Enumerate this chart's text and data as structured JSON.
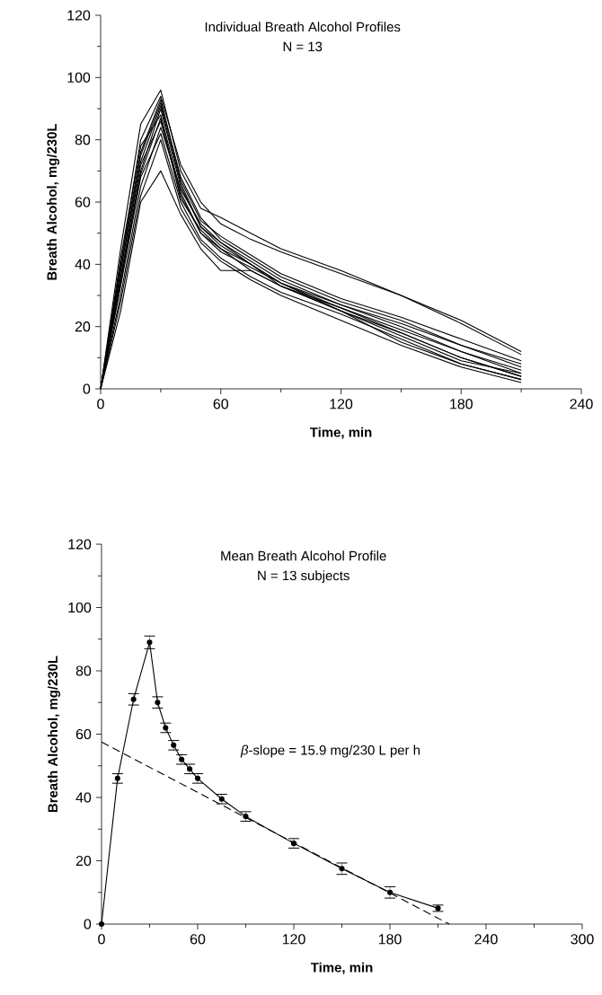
{
  "chart_data": [
    {
      "type": "line",
      "title": "Individual Breath Alcohol Profiles",
      "subtitle": "N = 13",
      "xlabel": "Time, min",
      "ylabel": "Breath Alcohol, mg/230L",
      "x": [
        0,
        10,
        20,
        30,
        40,
        50,
        60,
        75,
        90,
        120,
        150,
        180,
        210
      ],
      "series": [
        {
          "color": "#000000",
          "values": [
            0,
            45,
            85,
            96,
            70,
            58,
            55,
            50,
            45,
            38,
            30,
            22,
            12
          ]
        },
        {
          "color": "#000000",
          "values": [
            0,
            40,
            80,
            94,
            72,
            60,
            53,
            48,
            44,
            37,
            30,
            21,
            11
          ]
        },
        {
          "color": "#000000",
          "values": [
            0,
            38,
            75,
            92,
            68,
            55,
            48,
            42,
            36,
            28,
            22,
            14,
            7
          ]
        },
        {
          "color": "#000000",
          "values": [
            0,
            35,
            70,
            90,
            65,
            52,
            46,
            40,
            34,
            27,
            20,
            12,
            5
          ]
        },
        {
          "color": "#000000",
          "values": [
            0,
            42,
            78,
            88,
            63,
            50,
            45,
            38,
            33,
            25,
            18,
            10,
            4
          ]
        },
        {
          "color": "#000000",
          "values": [
            0,
            36,
            72,
            86,
            62,
            50,
            44,
            39,
            34,
            26,
            19,
            12,
            6
          ]
        },
        {
          "color": "#000000",
          "values": [
            0,
            30,
            65,
            84,
            64,
            53,
            47,
            41,
            35,
            27,
            21,
            14,
            8
          ]
        },
        {
          "color": "#000000",
          "values": [
            0,
            33,
            68,
            82,
            60,
            48,
            42,
            36,
            31,
            24,
            16,
            8,
            3
          ]
        },
        {
          "color": "#000000",
          "values": [
            0,
            28,
            62,
            80,
            58,
            47,
            41,
            35,
            30,
            22,
            14,
            7,
            2
          ]
        },
        {
          "color": "#000000",
          "values": [
            0,
            25,
            60,
            70,
            56,
            45,
            38,
            38,
            33,
            26,
            18,
            10,
            4
          ]
        },
        {
          "color": "#000000",
          "values": [
            0,
            38,
            73,
            91,
            66,
            52,
            47,
            40,
            34,
            25,
            15,
            8,
            3
          ]
        },
        {
          "color": "#000000",
          "values": [
            0,
            40,
            76,
            93,
            67,
            54,
            49,
            43,
            37,
            29,
            23,
            16,
            9
          ]
        },
        {
          "color": "#000000",
          "values": [
            0,
            34,
            69,
            87,
            61,
            51,
            45,
            40,
            33,
            25,
            17,
            9,
            5
          ]
        }
      ],
      "xlim": [
        0,
        240
      ],
      "xticks": [
        0,
        60,
        120,
        180,
        240
      ],
      "ylim": [
        0,
        120
      ],
      "yticks": [
        0,
        20,
        40,
        60,
        80,
        100,
        120
      ],
      "grid": false,
      "marker": "none",
      "line_style": "solid"
    },
    {
      "type": "line",
      "title": "Mean Breath Alcohol Profile",
      "subtitle": "N = 13 subjects",
      "xlabel": "Time, min",
      "ylabel": "Breath Alcohol, mg/230L",
      "annotations": [
        "*β*-slope = 15.9 mg/230 L per h"
      ],
      "x": [
        0,
        10,
        20,
        30,
        35,
        40,
        45,
        50,
        55,
        60,
        75,
        90,
        120,
        150,
        180,
        210
      ],
      "series": [
        {
          "color": "#000000",
          "marker": "circle",
          "line_style": "solid",
          "values": [
            0,
            46,
            71,
            89,
            70,
            62,
            56.5,
            52,
            49,
            46,
            39.5,
            34,
            25.5,
            17.5,
            10,
            5
          ],
          "errors": [
            null,
            1.5,
            1.8,
            2,
            1.8,
            1.5,
            1.5,
            1.5,
            1.5,
            1.5,
            1.5,
            1.5,
            1.5,
            1.8,
            1.8,
            1
          ]
        },
        {
          "type": "line",
          "color": "#000000",
          "marker": "none",
          "line_style": "dashed",
          "x": [
            0,
            217
          ],
          "values": [
            57.5,
            0
          ]
        }
      ],
      "xlim": [
        0,
        300
      ],
      "xticks": [
        0,
        60,
        120,
        180,
        240,
        300
      ],
      "ylim": [
        0,
        120
      ],
      "yticks": [
        0,
        20,
        40,
        60,
        80,
        100,
        120
      ],
      "grid": false
    }
  ]
}
